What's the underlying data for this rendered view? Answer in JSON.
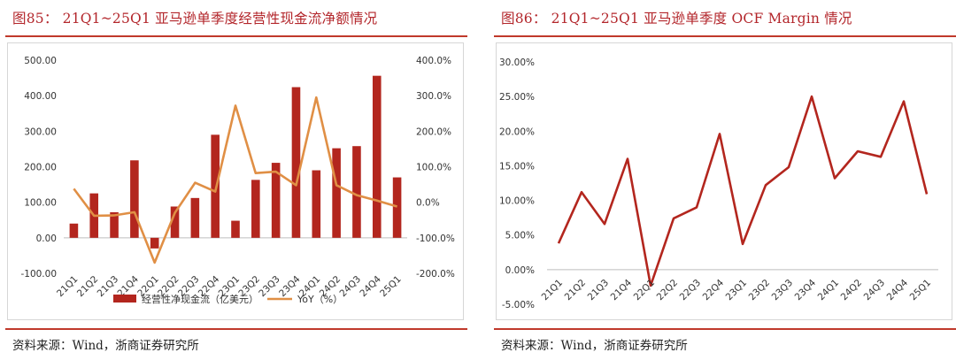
{
  "left": {
    "title": "图85： 21Q1~25Q1 亚马逊单季度经营性现金流净额情况",
    "source": "资料来源：Wind，浙商证券研究所",
    "colors": {
      "bar": "#b3261e",
      "line": "#e08f45"
    }
  },
  "right": {
    "title": "图86： 21Q1~25Q1 亚马逊单季度 OCF Margin 情况",
    "source": "资料来源：Wind，浙商证券研究所",
    "colors": {
      "line": "#b3261e"
    }
  },
  "chart_data": [
    {
      "type": "bar",
      "categories": [
        "21Q1",
        "21Q2",
        "21Q3",
        "21Q4",
        "22Q1",
        "22Q2",
        "22Q3",
        "22Q4",
        "23Q1",
        "23Q2",
        "23Q3",
        "23Q4",
        "24Q1",
        "24Q2",
        "24Q3",
        "24Q4",
        "25Q1"
      ],
      "series": [
        {
          "name": "经营性净现金流（亿美元）",
          "axis": "left",
          "type": "bar",
          "values": [
            40,
            125,
            72,
            218,
            -30,
            88,
            112,
            290,
            48,
            163,
            211,
            424,
            190,
            252,
            258,
            456,
            170
          ]
        },
        {
          "name": "YoY（%）",
          "axis": "right",
          "type": "line",
          "values": [
            38,
            -38,
            -37,
            -28,
            -170,
            -30,
            55,
            30,
            272,
            82,
            86,
            48,
            295,
            48,
            20,
            5,
            -12
          ]
        }
      ],
      "y_left": {
        "min": -100,
        "max": 500,
        "ticks": [
          "-100.00",
          "0.00",
          "100.00",
          "200.00",
          "300.00",
          "400.00",
          "500.00"
        ]
      },
      "y_right": {
        "min": -200,
        "max": 400,
        "ticks": [
          "-200.0%",
          "-100.0%",
          "0.0%",
          "100.0%",
          "200.0%",
          "300.0%",
          "400.0%"
        ]
      },
      "grid": false,
      "legend_position": "bottom"
    },
    {
      "type": "line",
      "categories": [
        "21Q1",
        "21Q2",
        "21Q3",
        "21Q4",
        "22Q1",
        "22Q2",
        "22Q3",
        "22Q4",
        "23Q1",
        "23Q2",
        "23Q3",
        "23Q4",
        "24Q1",
        "24Q2",
        "24Q3",
        "24Q4",
        "25Q1"
      ],
      "series": [
        {
          "values": [
            3.8,
            11.2,
            6.6,
            16.0,
            -2.3,
            7.4,
            9.0,
            19.6,
            3.7,
            12.2,
            14.8,
            25.0,
            13.2,
            17.1,
            16.3,
            24.3,
            10.9
          ]
        }
      ],
      "y": {
        "min": -5,
        "max": 30,
        "ticks": [
          "-5.00%",
          "0.00%",
          "5.00%",
          "10.00%",
          "15.00%",
          "20.00%",
          "25.00%",
          "30.00%"
        ]
      },
      "grid": false,
      "legend_position": "none"
    }
  ]
}
